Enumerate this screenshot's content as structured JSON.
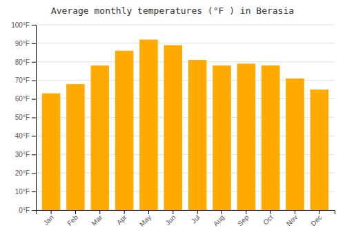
{
  "chart_data": {
    "type": "bar",
    "title": "Average monthly temperatures (°F ) in Berasia",
    "categories": [
      "Jan",
      "Feb",
      "Mar",
      "Apr",
      "May",
      "Jun",
      "Jul",
      "Aug",
      "Sep",
      "Oct",
      "Nov",
      "Dec"
    ],
    "values": [
      63,
      68,
      78,
      86,
      92,
      89,
      81,
      78,
      79,
      78,
      71,
      65
    ],
    "color": "#FFAA00",
    "ylim": [
      0,
      100
    ],
    "yticks": [
      {
        "value": 0,
        "label": "0°F"
      },
      {
        "value": 10,
        "label": "10°F"
      },
      {
        "value": 20,
        "label": "20°F"
      },
      {
        "value": 30,
        "label": "30°F"
      },
      {
        "value": 40,
        "label": "40°F"
      },
      {
        "value": 50,
        "label": "50°F"
      },
      {
        "value": 60,
        "label": "60°F"
      },
      {
        "value": 70,
        "label": "70°F"
      },
      {
        "value": 80,
        "label": "80°F"
      },
      {
        "value": 90,
        "label": "90°F"
      },
      {
        "value": 100,
        "label": "100°F"
      }
    ],
    "grid": true
  }
}
